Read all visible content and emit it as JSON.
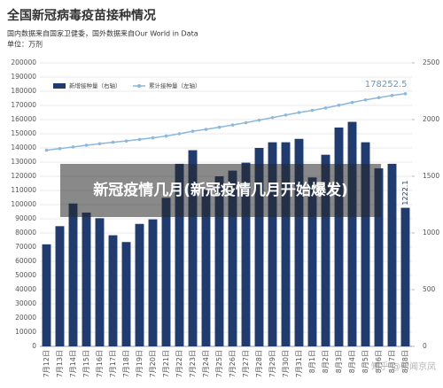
{
  "chart_data": {
    "type": "bar",
    "title": "全国新冠病毒疫苗接种情况",
    "subtitle": "国内数据来自国家卫健委，国外数据来自Our World in Data",
    "unit": "单位：万剂",
    "categories": [
      "7月12日",
      "7月13日",
      "7月14日",
      "7月15日",
      "7月16日",
      "7月17日",
      "7月18日",
      "7月19日",
      "7月20日",
      "7月21日",
      "7月22日",
      "7月23日",
      "7月24日",
      "7月25日",
      "7月26日",
      "7月27日",
      "7月28日",
      "7月29日",
      "7月30日",
      "7月31日",
      "8月1日",
      "8月2日",
      "8月3日",
      "8月4日",
      "8月5日",
      "8月6日",
      "8月7日",
      "8月8日"
    ],
    "series": [
      {
        "name": "新增接种量（右轴）",
        "type": "bar",
        "axis": "y2",
        "color": "#1f3b70",
        "values": [
          900,
          1060,
          1260,
          1180,
          1130,
          980,
          920,
          1080,
          1120,
          1310,
          1610,
          1730,
          1380,
          1500,
          1550,
          1620,
          1750,
          1800,
          1800,
          1830,
          1490,
          1690,
          1930,
          1980,
          1800,
          1570,
          1610,
          1222.1
        ]
      },
      {
        "name": "累计接种量（左轴）",
        "type": "line",
        "axis": "y",
        "color": "#8cb8dc",
        "values": [
          138400,
          139500,
          140700,
          141900,
          143000,
          144000,
          144900,
          146000,
          147100,
          148400,
          150000,
          151800,
          153100,
          154600,
          156200,
          157800,
          159600,
          161400,
          163200,
          165000,
          166500,
          168200,
          170100,
          172100,
          173900,
          175500,
          177000,
          178252.5
        ]
      }
    ],
    "ylim": [
      0,
      200000
    ],
    "yticks": [
      0,
      10000,
      20000,
      30000,
      40000,
      50000,
      60000,
      70000,
      80000,
      90000,
      100000,
      110000,
      120000,
      130000,
      140000,
      150000,
      160000,
      170000,
      180000,
      190000,
      200000
    ],
    "y2lim": [
      0,
      2500
    ],
    "y2ticks": [
      0,
      500,
      1000,
      1500,
      2000,
      2500
    ],
    "grid": true
  },
  "overlay": "新冠疫情几月(新冠疫情几月开始爆发)",
  "watermark": "知乎 @新闻京凤"
}
